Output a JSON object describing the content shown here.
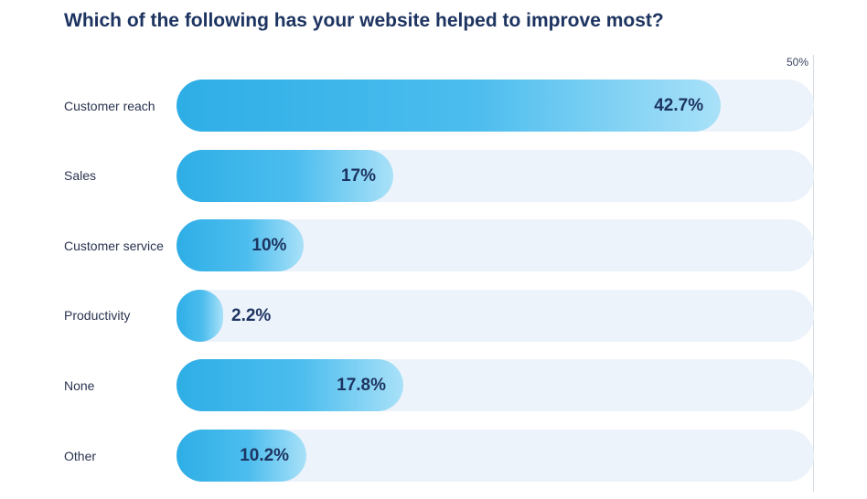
{
  "chart_data": {
    "type": "bar",
    "orientation": "horizontal",
    "title": "Which of the following has your website helped to improve most?",
    "axis_max_label": "50%",
    "xlim": [
      0,
      50
    ],
    "value_suffix": "%",
    "categories": [
      "Customer reach",
      "Sales",
      "Customer service",
      "Productivity",
      "None",
      "Other"
    ],
    "values": [
      42.7,
      17,
      10,
      2.2,
      17.8,
      10.2
    ],
    "value_labels": [
      "42.7%",
      "17%",
      "10%",
      "2.2%",
      "17.8%",
      "10.2%"
    ],
    "colors": {
      "bar_start": "#2eaee6",
      "bar_end": "#a9e1f8",
      "track": "#edf3fb",
      "text": "#1d3461"
    }
  }
}
